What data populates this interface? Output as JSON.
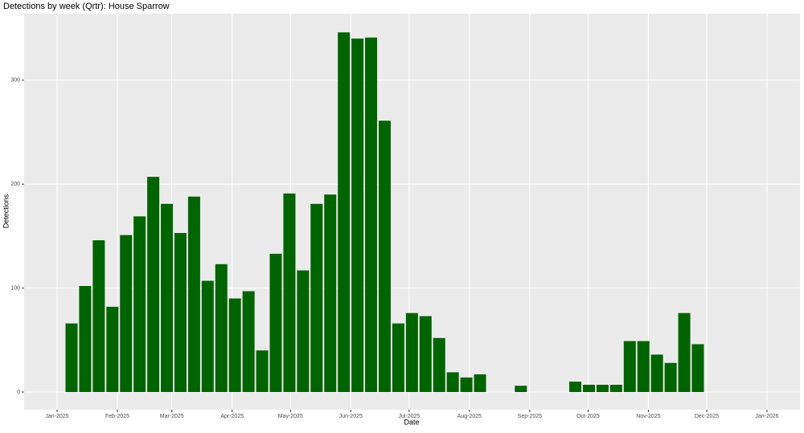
{
  "chart_data": {
    "type": "bar",
    "title": "Detections by week (Qrtr): House Sparrow",
    "x_label": "Date",
    "y_label": "Detections",
    "categories": [
      null,
      null,
      null,
      null,
      null,
      null,
      null,
      null,
      null,
      null,
      null,
      null,
      null,
      null,
      null,
      null,
      null,
      null,
      null,
      null,
      null,
      null,
      null,
      null,
      null,
      null,
      null,
      null,
      null,
      null,
      null,
      null,
      null,
      null,
      null,
      null,
      null,
      null,
      null,
      null,
      null,
      null,
      null,
      null,
      null,
      null,
      null
    ],
    "values": [
      66,
      102,
      146,
      82,
      151,
      169,
      207,
      181,
      153,
      188,
      107,
      123,
      90,
      97,
      40,
      133,
      191,
      117,
      181,
      190,
      346,
      340,
      341,
      261,
      66,
      76,
      73,
      52,
      19,
      14,
      17,
      null,
      null,
      6,
      null,
      null,
      null,
      10,
      7,
      7,
      7,
      49,
      49,
      36,
      28,
      76,
      46
    ],
    "color": "#006400",
    "ylim": [
      -17,
      364
    ],
    "yticks": [
      0,
      100,
      200,
      300
    ],
    "xticks": [
      "Jan-2025",
      "Feb-2025",
      "Mar-2025",
      "Apr-2025",
      "May-2025",
      "Jun-2025",
      "Jul-2025",
      "Aug-2025",
      "Sep-2025",
      "Oct-2025",
      "Nov-2025",
      "Dec-2025",
      "Jan-2026"
    ],
    "grid": true
  }
}
